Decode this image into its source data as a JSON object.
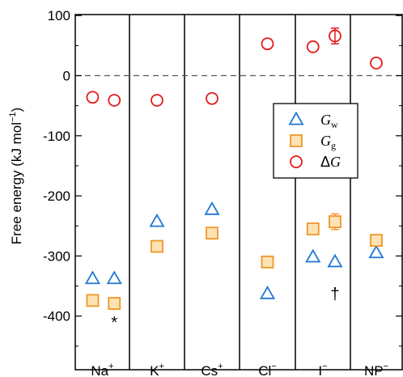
{
  "chart_data": {
    "type": "scatter",
    "ylabel": "Free energy (kJ mol",
    "ylabel_sup": "−1",
    "ylabel_close": ")",
    "ylim": [
      -455,
      100
    ],
    "yticks": [
      100,
      0,
      -100,
      -200,
      -300,
      -400
    ],
    "ytick_labels": [
      "100",
      "0",
      "-100",
      "-200",
      "-300",
      "-400"
    ],
    "zero_line": true,
    "groups": [
      {
        "base": "Na",
        "sup": "+"
      },
      {
        "base": "K",
        "sup": "+"
      },
      {
        "base": "Cs",
        "sup": "+"
      },
      {
        "base": "Cl",
        "sup": "−"
      },
      {
        "base": "I",
        "sup": "−"
      },
      {
        "base": "NP",
        "sup": "−"
      }
    ],
    "legend": {
      "placement": "right-middle",
      "entries": [
        {
          "series": "Gw",
          "base": "G",
          "sub": "w"
        },
        {
          "series": "Gg",
          "base": "G",
          "sub": "g"
        },
        {
          "series": "dG",
          "prefix": "Δ",
          "base": "G",
          "sub": ""
        }
      ]
    },
    "series": [
      {
        "id": "Gw",
        "marker": "triangle",
        "color": "#1f77d4",
        "points": [
          {
            "group": 0,
            "slot": 0,
            "y": -338
          },
          {
            "group": 0,
            "slot": 1,
            "y": -338
          },
          {
            "group": 1,
            "slot": 0.5,
            "y": -243
          },
          {
            "group": 2,
            "slot": 0.5,
            "y": -223
          },
          {
            "group": 3,
            "slot": 0.5,
            "y": -363
          },
          {
            "group": 4,
            "slot": 0,
            "y": -302
          },
          {
            "group": 4,
            "slot": 1,
            "y": -310
          },
          {
            "group": 5,
            "slot": 0.5,
            "y": -295
          }
        ]
      },
      {
        "id": "Gg",
        "marker": "square",
        "color": "#f0962a",
        "points": [
          {
            "group": 0,
            "slot": 0,
            "y": -374
          },
          {
            "group": 0,
            "slot": 1,
            "y": -379
          },
          {
            "group": 1,
            "slot": 0.5,
            "y": -284
          },
          {
            "group": 2,
            "slot": 0.5,
            "y": -262
          },
          {
            "group": 3,
            "slot": 0.5,
            "y": -310
          },
          {
            "group": 4,
            "slot": 0,
            "y": -255
          },
          {
            "group": 4,
            "slot": 1,
            "y": -243,
            "err": 13
          },
          {
            "group": 5,
            "slot": 0.5,
            "y": -274
          }
        ]
      },
      {
        "id": "dG",
        "marker": "circle",
        "color": "#e41a1c",
        "points": [
          {
            "group": 0,
            "slot": 0,
            "y": -36
          },
          {
            "group": 0,
            "slot": 1,
            "y": -41
          },
          {
            "group": 1,
            "slot": 0.5,
            "y": -41
          },
          {
            "group": 2,
            "slot": 0.5,
            "y": -38
          },
          {
            "group": 3,
            "slot": 0.5,
            "y": 53
          },
          {
            "group": 4,
            "slot": 0,
            "y": 48
          },
          {
            "group": 4,
            "slot": 1,
            "y": 66,
            "err": 13
          },
          {
            "group": 5,
            "slot": 0.5,
            "y": 21
          }
        ]
      }
    ],
    "annotations": [
      {
        "text": "*",
        "group": 0,
        "slot": 1,
        "y": -410
      },
      {
        "text": "†",
        "group": 4,
        "slot": 1,
        "y": -363
      }
    ]
  }
}
